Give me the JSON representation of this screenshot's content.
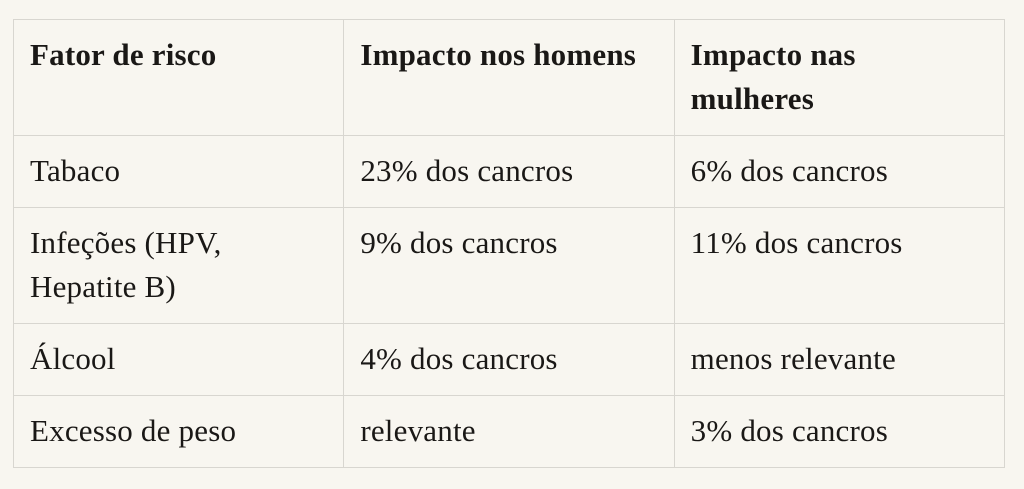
{
  "colors": {
    "background": "#f8f6f0",
    "border": "#d8d6d0",
    "text": "#1a1816"
  },
  "table": {
    "columns": [
      {
        "label": "Fator de risco"
      },
      {
        "label": "Impacto nos homens"
      },
      {
        "label": "Impacto nas\nmulheres"
      }
    ],
    "rows": [
      {
        "factor": "Tabaco",
        "impact_men": "23% dos cancros",
        "impact_women": "6% dos cancros"
      },
      {
        "factor": "Infeções (HPV,\nHepatite B)",
        "impact_men": "9% dos cancros",
        "impact_women": "11% dos cancros"
      },
      {
        "factor": "Álcool",
        "impact_men": "4% dos cancros",
        "impact_women": "menos relevante"
      },
      {
        "factor": "Excesso de peso",
        "impact_men": "relevante",
        "impact_women": "3% dos cancros"
      }
    ]
  }
}
